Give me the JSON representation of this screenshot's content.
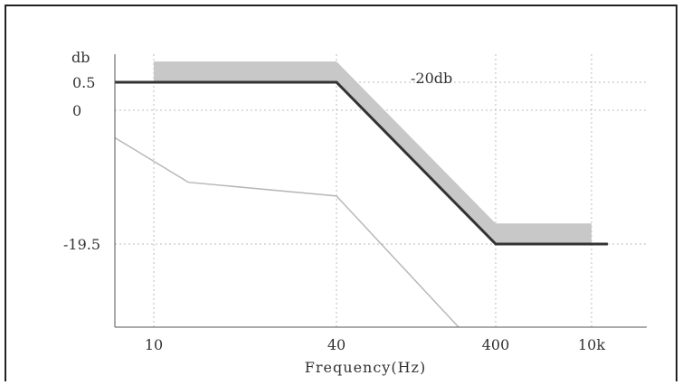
{
  "chart_data": {
    "type": "line",
    "ylabel": "db",
    "xlabel": "Frequency(Hz)",
    "x_ticks": [
      "10",
      "40",
      "400",
      "10k"
    ],
    "y_ticks": [
      "0.5",
      "0",
      "-19.5"
    ],
    "y_tick_values": [
      0.5,
      0,
      -19.5
    ],
    "ylim": [
      -32,
      2.5
    ],
    "x_scale": "categorical-positions",
    "annotation": "-20db",
    "grid": "dotted",
    "series": [
      {
        "values": [
          [
            10,
            0.5
          ],
          [
            40,
            0.5
          ],
          [
            400,
            -19.5
          ],
          [
            10000,
            -19.5
          ]
        ],
        "color": "#333333"
      },
      {
        "values": [
          [
            10,
            -4
          ],
          [
            13,
            -10.5
          ],
          [
            40,
            -12.5
          ],
          [
            300,
            -32
          ]
        ],
        "color": "#b8b8b8"
      }
    ],
    "tolerance_band": {
      "color": "#c8c8c8",
      "upper": [
        [
          10,
          2.5
        ],
        [
          40,
          2.5
        ],
        [
          400,
          -16.5
        ],
        [
          10000,
          -16.5
        ]
      ],
      "lower": [
        [
          10,
          0.5
        ],
        [
          40,
          0.5
        ],
        [
          400,
          -19.5
        ],
        [
          10000,
          -19.5
        ]
      ]
    }
  }
}
